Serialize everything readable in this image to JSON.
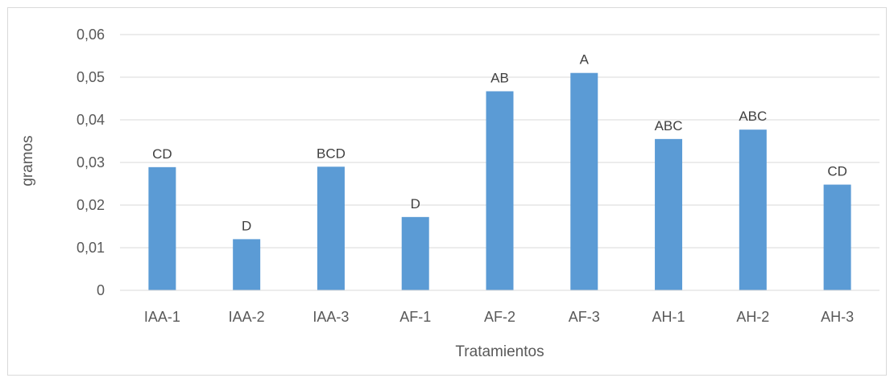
{
  "chart_data": {
    "type": "bar",
    "title": "",
    "xlabel": "Tratamientos",
    "ylabel": "gramos",
    "categories": [
      "IAA-1",
      "IAA-2",
      "IAA-3",
      "AF-1",
      "AF-2",
      "AF-3",
      "AH-1",
      "AH-2",
      "AH-3"
    ],
    "values": [
      0.0289,
      0.012,
      0.029,
      0.0172,
      0.0467,
      0.051,
      0.0355,
      0.0377,
      0.0248
    ],
    "data_labels": [
      "CD",
      "D",
      "BCD",
      "D",
      "AB",
      "A",
      "ABC",
      "ABC",
      "CD"
    ],
    "ylim": [
      0,
      0.06
    ],
    "yticks": [
      0,
      0.01,
      0.02,
      0.03,
      0.04,
      0.05,
      0.06
    ],
    "ytick_labels": [
      "0",
      "0,01",
      "0,02",
      "0,03",
      "0,04",
      "0,05",
      "0,06"
    ],
    "grid": true,
    "legend": "none",
    "colors": {
      "bar": "#5b9bd5",
      "grid": "#d9d9d9",
      "axis_text": "#595959",
      "label_text": "#404040"
    }
  }
}
